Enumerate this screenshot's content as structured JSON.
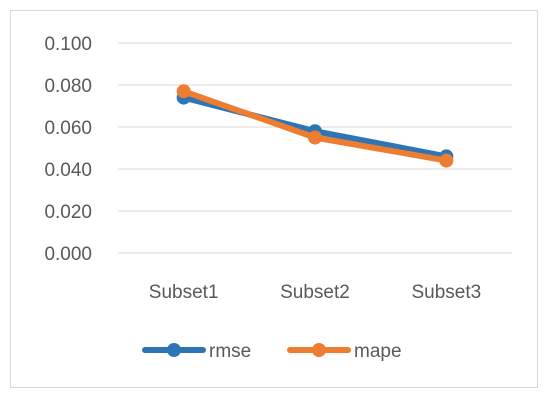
{
  "chart_data": {
    "type": "line",
    "title": "",
    "xlabel": "",
    "ylabel": "",
    "categories": [
      "Subset1",
      "Subset2",
      "Subset3"
    ],
    "ylim": [
      0,
      0.1
    ],
    "yticks": [
      "0.100",
      "0.080",
      "0.060",
      "0.040",
      "0.020",
      "0.000"
    ],
    "grid": true,
    "legend": "bottom",
    "series": [
      {
        "name": "rmse",
        "values": [
          0.074,
          0.058,
          0.046
        ],
        "color": "#2e75b6"
      },
      {
        "name": "mape",
        "values": [
          0.077,
          0.055,
          0.044
        ],
        "color": "#ed7d31"
      }
    ]
  }
}
